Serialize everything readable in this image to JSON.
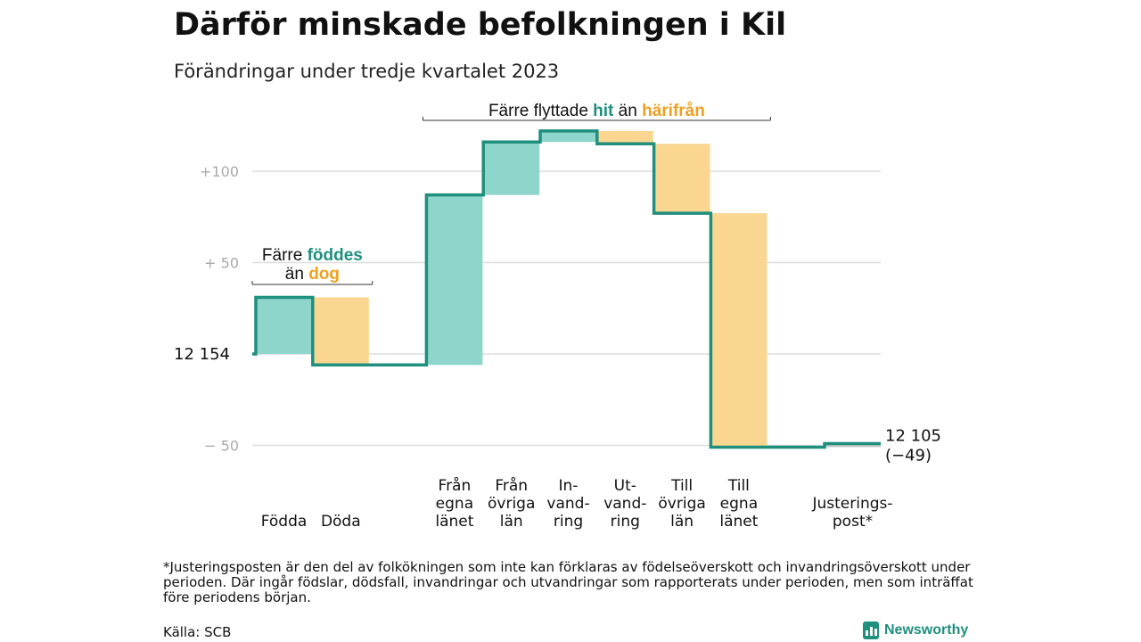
{
  "title": "Därför minskade befolkningen i Kil",
  "subtitle": "Förändringar under tredje kvartalet 2023",
  "footnote": "*Justeringsposten är den del av folkökningen som inte kan förklaras av födelseöverskott och invandringsöverskott under perioden. Där ingår födslar, dödsfall, invandringar och utvandringar som rapporterats under perioden, men som inträffat före periodens början.",
  "source": "Källa: SCB",
  "logo": {
    "text": "Newsworthy",
    "icon": "bar-chart-icon"
  },
  "colors": {
    "line": "#1f8f7e",
    "increase": "#8ed6cc",
    "decrease": "#fad690",
    "adjustment": "#c9c9c9",
    "grid": "#dddddd",
    "teal_text": "#1f8f7e",
    "orange_text": "#f0a020"
  },
  "chart_data": {
    "type": "waterfall",
    "start": {
      "label": "12  154",
      "value": 12154
    },
    "end": {
      "value": 12105,
      "label_line1": "12 105",
      "label_line2": "(−49)"
    },
    "yticks": [
      {
        "offset": 100,
        "label": "+100"
      },
      {
        "offset": 50,
        "label": "+  50"
      },
      {
        "offset": -50,
        "label": "−  50"
      }
    ],
    "ylim": [
      -53,
      122
    ],
    "steps": [
      {
        "category_lines": [
          "Födda"
        ],
        "value": 31,
        "kind": "increase"
      },
      {
        "category_lines": [
          "Döda"
        ],
        "value": -37,
        "kind": "decrease"
      },
      {
        "category_lines": [
          ""
        ],
        "value": 0,
        "kind": "spacer"
      },
      {
        "category_lines": [
          "Från",
          "egna",
          "länet"
        ],
        "value": 93,
        "kind": "increase"
      },
      {
        "category_lines": [
          "Från",
          "övriga",
          "län"
        ],
        "value": 29,
        "kind": "increase"
      },
      {
        "category_lines": [
          "In-",
          "vand-",
          "ring"
        ],
        "value": 6,
        "kind": "increase"
      },
      {
        "category_lines": [
          "Ut-",
          "vand-",
          "ring"
        ],
        "value": -7,
        "kind": "decrease"
      },
      {
        "category_lines": [
          "Till",
          "övriga",
          "län"
        ],
        "value": -38,
        "kind": "decrease"
      },
      {
        "category_lines": [
          "Till",
          "egna",
          "länet"
        ],
        "value": -128,
        "kind": "decrease"
      },
      {
        "category_lines": [
          ""
        ],
        "value": 0,
        "kind": "spacer"
      },
      {
        "category_lines": [
          "Justerings-",
          "post*"
        ],
        "value": 2,
        "kind": "adjustment"
      }
    ],
    "annotations": [
      {
        "lines": [
          [
            {
              "t": "Färre ",
              "c": "dark"
            },
            {
              "t": "föddes",
              "c": "teal"
            }
          ],
          [
            {
              "t": "än ",
              "c": "dark"
            },
            {
              "t": "dog",
              "c": "orange"
            }
          ]
        ],
        "from_step": 0,
        "to_step": 1
      },
      {
        "lines": [
          [
            {
              "t": "Färre flyttade ",
              "c": "dark"
            },
            {
              "t": "hit",
              "c": "teal"
            },
            {
              "t": " än ",
              "c": "dark"
            },
            {
              "t": "härifrån",
              "c": "orange"
            }
          ]
        ],
        "from_step": 3,
        "to_step": 8
      }
    ]
  }
}
